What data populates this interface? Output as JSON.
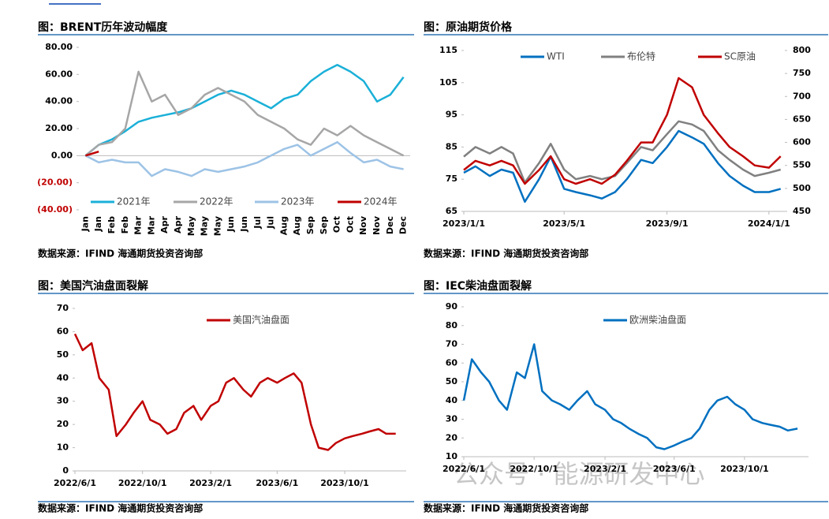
{
  "chart_data": [
    {
      "type": "line",
      "title": "图：BRENT历年波动幅度",
      "source": "数据来源：IFIND 海通期货投资咨询部",
      "categories": [
        "Jan",
        "Jan",
        "Feb",
        "Feb",
        "Mar",
        "Mar",
        "Apr",
        "Apr",
        "May",
        "May",
        "May",
        "Jun",
        "Jun",
        "Jul",
        "Jul",
        "Aug",
        "Aug",
        "Sep",
        "Sep",
        "Oct",
        "Oct",
        "Nov",
        "Nov",
        "Dec",
        "Dec"
      ],
      "series": [
        {
          "name": "2021年",
          "color": "#1ab0d8",
          "values": [
            0,
            8,
            12,
            18,
            25,
            28,
            30,
            32,
            35,
            40,
            45,
            48,
            45,
            40,
            35,
            42,
            45,
            55,
            62,
            67,
            62,
            55,
            40,
            45,
            58
          ]
        },
        {
          "name": "2022年",
          "color": "#a6a6a6",
          "values": [
            0,
            8,
            10,
            20,
            62,
            40,
            45,
            30,
            35,
            45,
            50,
            45,
            40,
            30,
            25,
            20,
            12,
            8,
            20,
            15,
            22,
            15,
            10,
            5,
            0
          ]
        },
        {
          "name": "2023年",
          "color": "#9dc3e6",
          "values": [
            0,
            -5,
            -3,
            -5,
            -5,
            -15,
            -10,
            -12,
            -15,
            -10,
            -12,
            -10,
            -8,
            -5,
            0,
            5,
            8,
            0,
            5,
            10,
            2,
            -5,
            -3,
            -8,
            -10
          ]
        },
        {
          "name": "2024年",
          "color": "#c00000",
          "values": [
            0,
            3,
            null,
            null,
            null,
            null,
            null,
            null,
            null,
            null,
            null,
            null,
            null,
            null,
            null,
            null,
            null,
            null,
            null,
            null,
            null,
            null,
            null,
            null,
            null
          ]
        }
      ],
      "ylim": [
        -40,
        80
      ],
      "yticks": [
        {
          "value": 80,
          "label": "80.00"
        },
        {
          "value": 60,
          "label": "60.00"
        },
        {
          "value": 40,
          "label": "40.00"
        },
        {
          "value": 20,
          "label": "20.00"
        },
        {
          "value": 0,
          "label": "0.00"
        },
        {
          "value": -20,
          "label": "(20.00)"
        },
        {
          "value": -40,
          "label": "(40.00)"
        }
      ],
      "negative_tick_color": "#c00000",
      "legend": "bottom"
    },
    {
      "type": "line",
      "title": "图：原油期货价格",
      "source": "数据来源：IFIND 海通期货投资咨询部",
      "x": [
        "2023/1/1",
        "2023/1/15",
        "2023/2/1",
        "2023/2/15",
        "2023/3/1",
        "2023/3/15",
        "2023/4/1",
        "2023/4/15",
        "2023/5/1",
        "2023/5/15",
        "2023/6/1",
        "2023/6/15",
        "2023/7/1",
        "2023/7/15",
        "2023/8/1",
        "2023/8/15",
        "2023/9/1",
        "2023/9/15",
        "2023/10/1",
        "2023/10/15",
        "2023/11/1",
        "2023/11/15",
        "2023/12/1",
        "2023/12/15",
        "2024/1/1",
        "2024/1/15"
      ],
      "series": [
        {
          "name": "WTI",
          "color": "#0070c0",
          "values": [
            77,
            79,
            76,
            78,
            77,
            68,
            75,
            82,
            72,
            71,
            70,
            69,
            71,
            75,
            81,
            80,
            85,
            90,
            88,
            86,
            80,
            76,
            73,
            71,
            71,
            72
          ]
        },
        {
          "name": "布伦特",
          "color": "#808080",
          "values": [
            82,
            85,
            83,
            85,
            83,
            74,
            80,
            86,
            78,
            75,
            76,
            75,
            76,
            80,
            85,
            84,
            89,
            93,
            92,
            90,
            84,
            81,
            78,
            76,
            77,
            78
          ]
        },
        {
          "name": "SC原油",
          "color": "#c00000",
          "axis": "y2",
          "values": [
            540,
            560,
            550,
            560,
            550,
            510,
            540,
            570,
            520,
            510,
            520,
            510,
            530,
            560,
            600,
            600,
            660,
            740,
            720,
            660,
            620,
            590,
            570,
            550,
            545,
            570
          ]
        }
      ],
      "xlim": [
        "2023/1/1",
        "2024/1/20"
      ],
      "xticks": [
        "2023/1/1",
        "2023/5/1",
        "2023/9/1",
        "2024/1/1"
      ],
      "ylim": [
        65,
        115
      ],
      "yticks": [
        65,
        75,
        85,
        95,
        105,
        115
      ],
      "y2lim": [
        450,
        800
      ],
      "y2ticks": [
        450,
        500,
        550,
        600,
        650,
        700,
        750,
        800
      ],
      "legend": "top"
    },
    {
      "type": "line",
      "title": "图：美国汽油盘面裂解",
      "source": "数据来源：IFIND 海通期货投资咨询部",
      "x": [
        "2022/6/1",
        "2022/6/15",
        "2022/7/1",
        "2022/7/15",
        "2022/8/1",
        "2022/8/15",
        "2022/9/1",
        "2022/9/15",
        "2022/10/1",
        "2022/10/15",
        "2022/11/1",
        "2022/11/15",
        "2022/12/1",
        "2022/12/15",
        "2023/1/1",
        "2023/1/15",
        "2023/2/1",
        "2023/2/15",
        "2023/3/1",
        "2023/3/15",
        "2023/4/1",
        "2023/4/15",
        "2023/5/1",
        "2023/5/15",
        "2023/6/1",
        "2023/6/15",
        "2023/7/1",
        "2023/7/15",
        "2023/8/1",
        "2023/8/15",
        "2023/9/1",
        "2023/9/15",
        "2023/10/1",
        "2023/10/15",
        "2023/11/1",
        "2023/11/15",
        "2023/12/1",
        "2023/12/15",
        "2024/1/1"
      ],
      "series": [
        {
          "name": "美国汽油盘面",
          "color": "#c00000",
          "values": [
            59,
            52,
            55,
            40,
            35,
            15,
            20,
            25,
            30,
            22,
            20,
            16,
            18,
            25,
            28,
            22,
            28,
            30,
            38,
            40,
            35,
            32,
            38,
            40,
            38,
            40,
            42,
            38,
            20,
            10,
            9,
            12,
            14,
            15,
            16,
            17,
            18,
            16,
            16
          ]
        }
      ],
      "xlim": [
        "2022/6/1",
        "2024/1/20"
      ],
      "xticks": [
        "2022/6/1",
        "2022/10/1",
        "2023/2/1",
        "2023/6/1",
        "2023/10/1"
      ],
      "ylim": [
        0,
        70
      ],
      "yticks": [
        0,
        10,
        20,
        30,
        40,
        50,
        60,
        70
      ],
      "legend": "top"
    },
    {
      "type": "line",
      "title": "图：IEC柴油盘面裂解",
      "source": "数据来源：IFIND 海通期货投资咨询部",
      "x": [
        "2022/6/1",
        "2022/6/15",
        "2022/7/1",
        "2022/7/15",
        "2022/8/1",
        "2022/8/15",
        "2022/9/1",
        "2022/9/15",
        "2022/10/1",
        "2022/10/15",
        "2022/11/1",
        "2022/11/15",
        "2022/12/1",
        "2022/12/15",
        "2023/1/1",
        "2023/1/15",
        "2023/2/1",
        "2023/2/15",
        "2023/3/1",
        "2023/3/15",
        "2023/4/1",
        "2023/4/15",
        "2023/5/1",
        "2023/5/15",
        "2023/6/1",
        "2023/6/15",
        "2023/7/1",
        "2023/7/15",
        "2023/8/1",
        "2023/8/15",
        "2023/9/1",
        "2023/9/15",
        "2023/10/1",
        "2023/10/15",
        "2023/11/1",
        "2023/11/15",
        "2023/12/1",
        "2023/12/15",
        "2024/1/1"
      ],
      "series": [
        {
          "name": "欧洲柴油盘面",
          "color": "#0070c0",
          "values": [
            40,
            62,
            55,
            50,
            40,
            35,
            55,
            52,
            70,
            45,
            40,
            38,
            35,
            40,
            45,
            38,
            35,
            30,
            28,
            25,
            22,
            20,
            15,
            14,
            16,
            18,
            20,
            25,
            35,
            40,
            42,
            38,
            35,
            30,
            28,
            27,
            26,
            24,
            25
          ]
        }
      ],
      "xlim": [
        "2022/6/1",
        "2024/1/20"
      ],
      "xticks": [
        "2022/6/1",
        "2022/10/1",
        "2023/2/1",
        "2023/6/1",
        "2023/10/1"
      ],
      "ylim": [
        10,
        90
      ],
      "yticks": [
        10,
        20,
        30,
        40,
        50,
        60,
        70,
        80,
        90
      ],
      "legend": "top"
    }
  ],
  "watermark": "公众号 · 能源研发中心"
}
